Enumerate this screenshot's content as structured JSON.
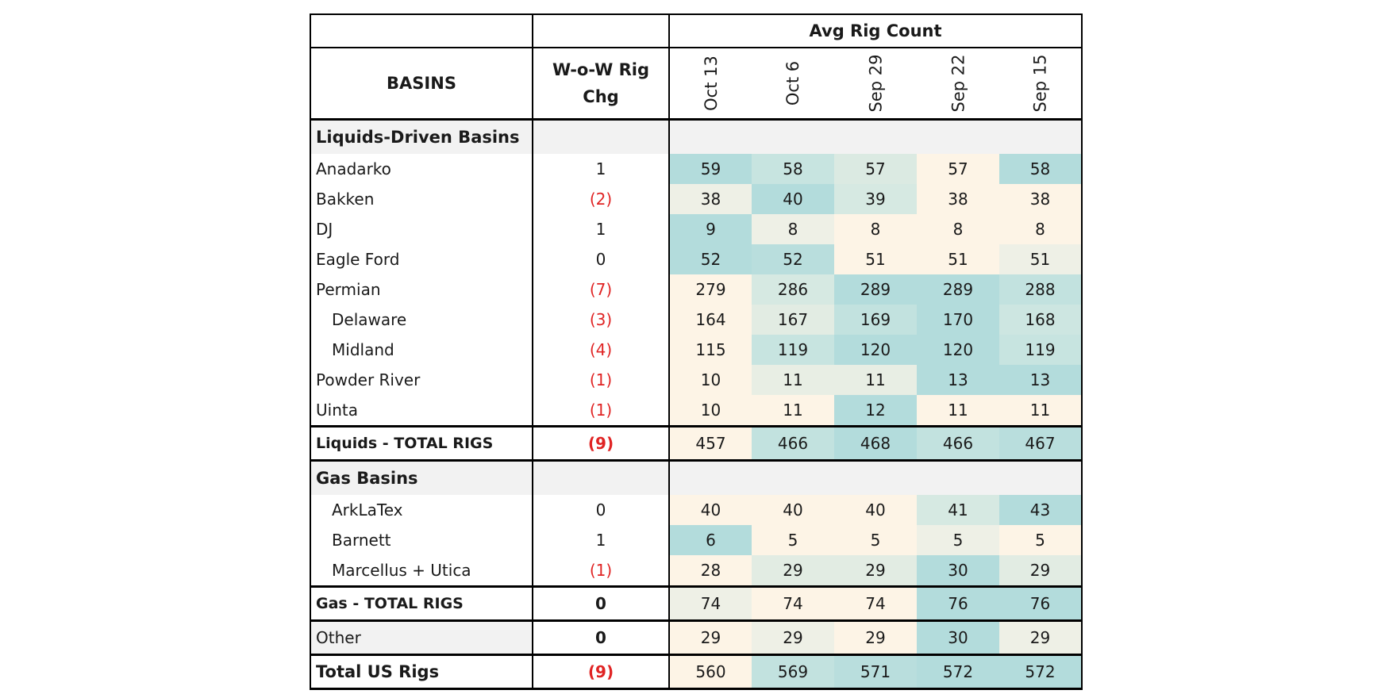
{
  "header": {
    "avg_rig_count": "Avg Rig Count",
    "basins": "BASINS",
    "wow_line1": "W-o-W Rig",
    "wow_line2": "Chg",
    "dates": [
      "Oct 13",
      "Oct 6",
      "Sep 29",
      "Sep 22",
      "Sep 15"
    ]
  },
  "rows": [
    {
      "type": "section",
      "label": "Liquids-Driven Basins"
    },
    {
      "type": "data",
      "label": "Anadarko",
      "chg": "1",
      "neg": false,
      "values": [
        "59",
        "58",
        "57",
        "57",
        "58"
      ],
      "colors": [
        "#b3dcdc",
        "#c7e4e0",
        "#dbeae2",
        "#fdf4e6",
        "#b3dcdc"
      ]
    },
    {
      "type": "data",
      "label": "Bakken",
      "chg": "(2)",
      "neg": true,
      "values": [
        "38",
        "40",
        "39",
        "38",
        "38"
      ],
      "colors": [
        "#eef0e6",
        "#b3dcdc",
        "#d6e9e2",
        "#fdf4e6",
        "#fdf4e6"
      ]
    },
    {
      "type": "data",
      "label": "DJ",
      "chg": "1",
      "neg": false,
      "values": [
        "9",
        "8",
        "8",
        "8",
        "8"
      ],
      "colors": [
        "#b3dcdc",
        "#eef0e6",
        "#fdf4e6",
        "#fdf4e6",
        "#fdf4e6"
      ]
    },
    {
      "type": "data",
      "label": "Eagle Ford",
      "chg": "0",
      "neg": false,
      "values": [
        "52",
        "52",
        "51",
        "51",
        "51"
      ],
      "colors": [
        "#b3dcdc",
        "#b9dedd",
        "#fdf4e6",
        "#fdf4e6",
        "#eef0e6"
      ]
    },
    {
      "type": "data",
      "label": "Permian",
      "chg": "(7)",
      "neg": true,
      "values": [
        "279",
        "286",
        "289",
        "289",
        "288"
      ],
      "colors": [
        "#fdf4e6",
        "#d6e9e2",
        "#b3dcdc",
        "#b3dcdc",
        "#c2e2df"
      ]
    },
    {
      "type": "data",
      "label": "Delaware",
      "indent": true,
      "chg": "(3)",
      "neg": true,
      "values": [
        "164",
        "167",
        "169",
        "170",
        "168"
      ],
      "colors": [
        "#fdf4e6",
        "#e2ece3",
        "#c2e2df",
        "#b3dcdc",
        "#cde6e1"
      ]
    },
    {
      "type": "data",
      "label": "Midland",
      "indent": true,
      "chg": "(4)",
      "neg": true,
      "values": [
        "115",
        "119",
        "120",
        "120",
        "119"
      ],
      "colors": [
        "#fdf4e6",
        "#c7e4e0",
        "#b3dcdc",
        "#b3dcdc",
        "#c7e4e0"
      ]
    },
    {
      "type": "data",
      "label": "Powder River",
      "chg": "(1)",
      "neg": true,
      "values": [
        "10",
        "11",
        "11",
        "13",
        "13"
      ],
      "colors": [
        "#fdf4e6",
        "#e8eee4",
        "#e8eee4",
        "#b3dcdc",
        "#b3dcdc"
      ]
    },
    {
      "type": "data",
      "label": "Uinta",
      "chg": "(1)",
      "neg": true,
      "values": [
        "10",
        "11",
        "12",
        "11",
        "11"
      ],
      "colors": [
        "#fdf4e6",
        "#fdf4e6",
        "#b3dcdc",
        "#fdf4e6",
        "#fdf4e6"
      ]
    },
    {
      "type": "total",
      "label": "Liquids - TOTAL RIGS",
      "chg": "(9)",
      "neg": true,
      "values": [
        "457",
        "466",
        "468",
        "466",
        "467"
      ],
      "colors": [
        "#fdf4e6",
        "#c2e2df",
        "#b3dcdc",
        "#c2e2df",
        "#b9dedd"
      ]
    },
    {
      "type": "section",
      "label": "Gas Basins"
    },
    {
      "type": "data",
      "label": "ArkLaTex",
      "indent": true,
      "chg": "0",
      "neg": false,
      "values": [
        "40",
        "40",
        "40",
        "41",
        "43"
      ],
      "colors": [
        "#fdf4e6",
        "#fdf4e6",
        "#fdf4e6",
        "#d6e9e2",
        "#b3dcdc"
      ]
    },
    {
      "type": "data",
      "label": "Barnett",
      "indent": true,
      "chg": "1",
      "neg": false,
      "values": [
        "6",
        "5",
        "5",
        "5",
        "5"
      ],
      "colors": [
        "#b3dcdc",
        "#fdf4e6",
        "#fdf4e6",
        "#eef0e6",
        "#fdf4e6"
      ]
    },
    {
      "type": "data",
      "label": "Marcellus + Utica",
      "indent": true,
      "chg": "(1)",
      "neg": true,
      "values": [
        "28",
        "29",
        "29",
        "30",
        "29"
      ],
      "colors": [
        "#fdf4e6",
        "#e2ece3",
        "#e2ece3",
        "#b3dcdc",
        "#e2ece3"
      ]
    },
    {
      "type": "total",
      "label": "Gas - TOTAL RIGS",
      "chg": "0",
      "neg": false,
      "values": [
        "74",
        "74",
        "74",
        "76",
        "76"
      ],
      "colors": [
        "#eef0e6",
        "#fdf4e6",
        "#fdf4e6",
        "#b3dcdc",
        "#b3dcdc"
      ]
    },
    {
      "type": "other",
      "label": "Other",
      "chg": "0",
      "neg": false,
      "values": [
        "29",
        "29",
        "29",
        "30",
        "29"
      ],
      "colors": [
        "#fdf4e6",
        "#eef0e6",
        "#fdf4e6",
        "#b3dcdc",
        "#eef0e6"
      ]
    },
    {
      "type": "grand",
      "label": "Total US Rigs",
      "chg": "(9)",
      "neg": true,
      "values": [
        "560",
        "569",
        "571",
        "572",
        "572"
      ],
      "colors": [
        "#fdf4e6",
        "#c2e2df",
        "#b9dedd",
        "#b3dcdc",
        "#b3dcdc"
      ]
    }
  ]
}
